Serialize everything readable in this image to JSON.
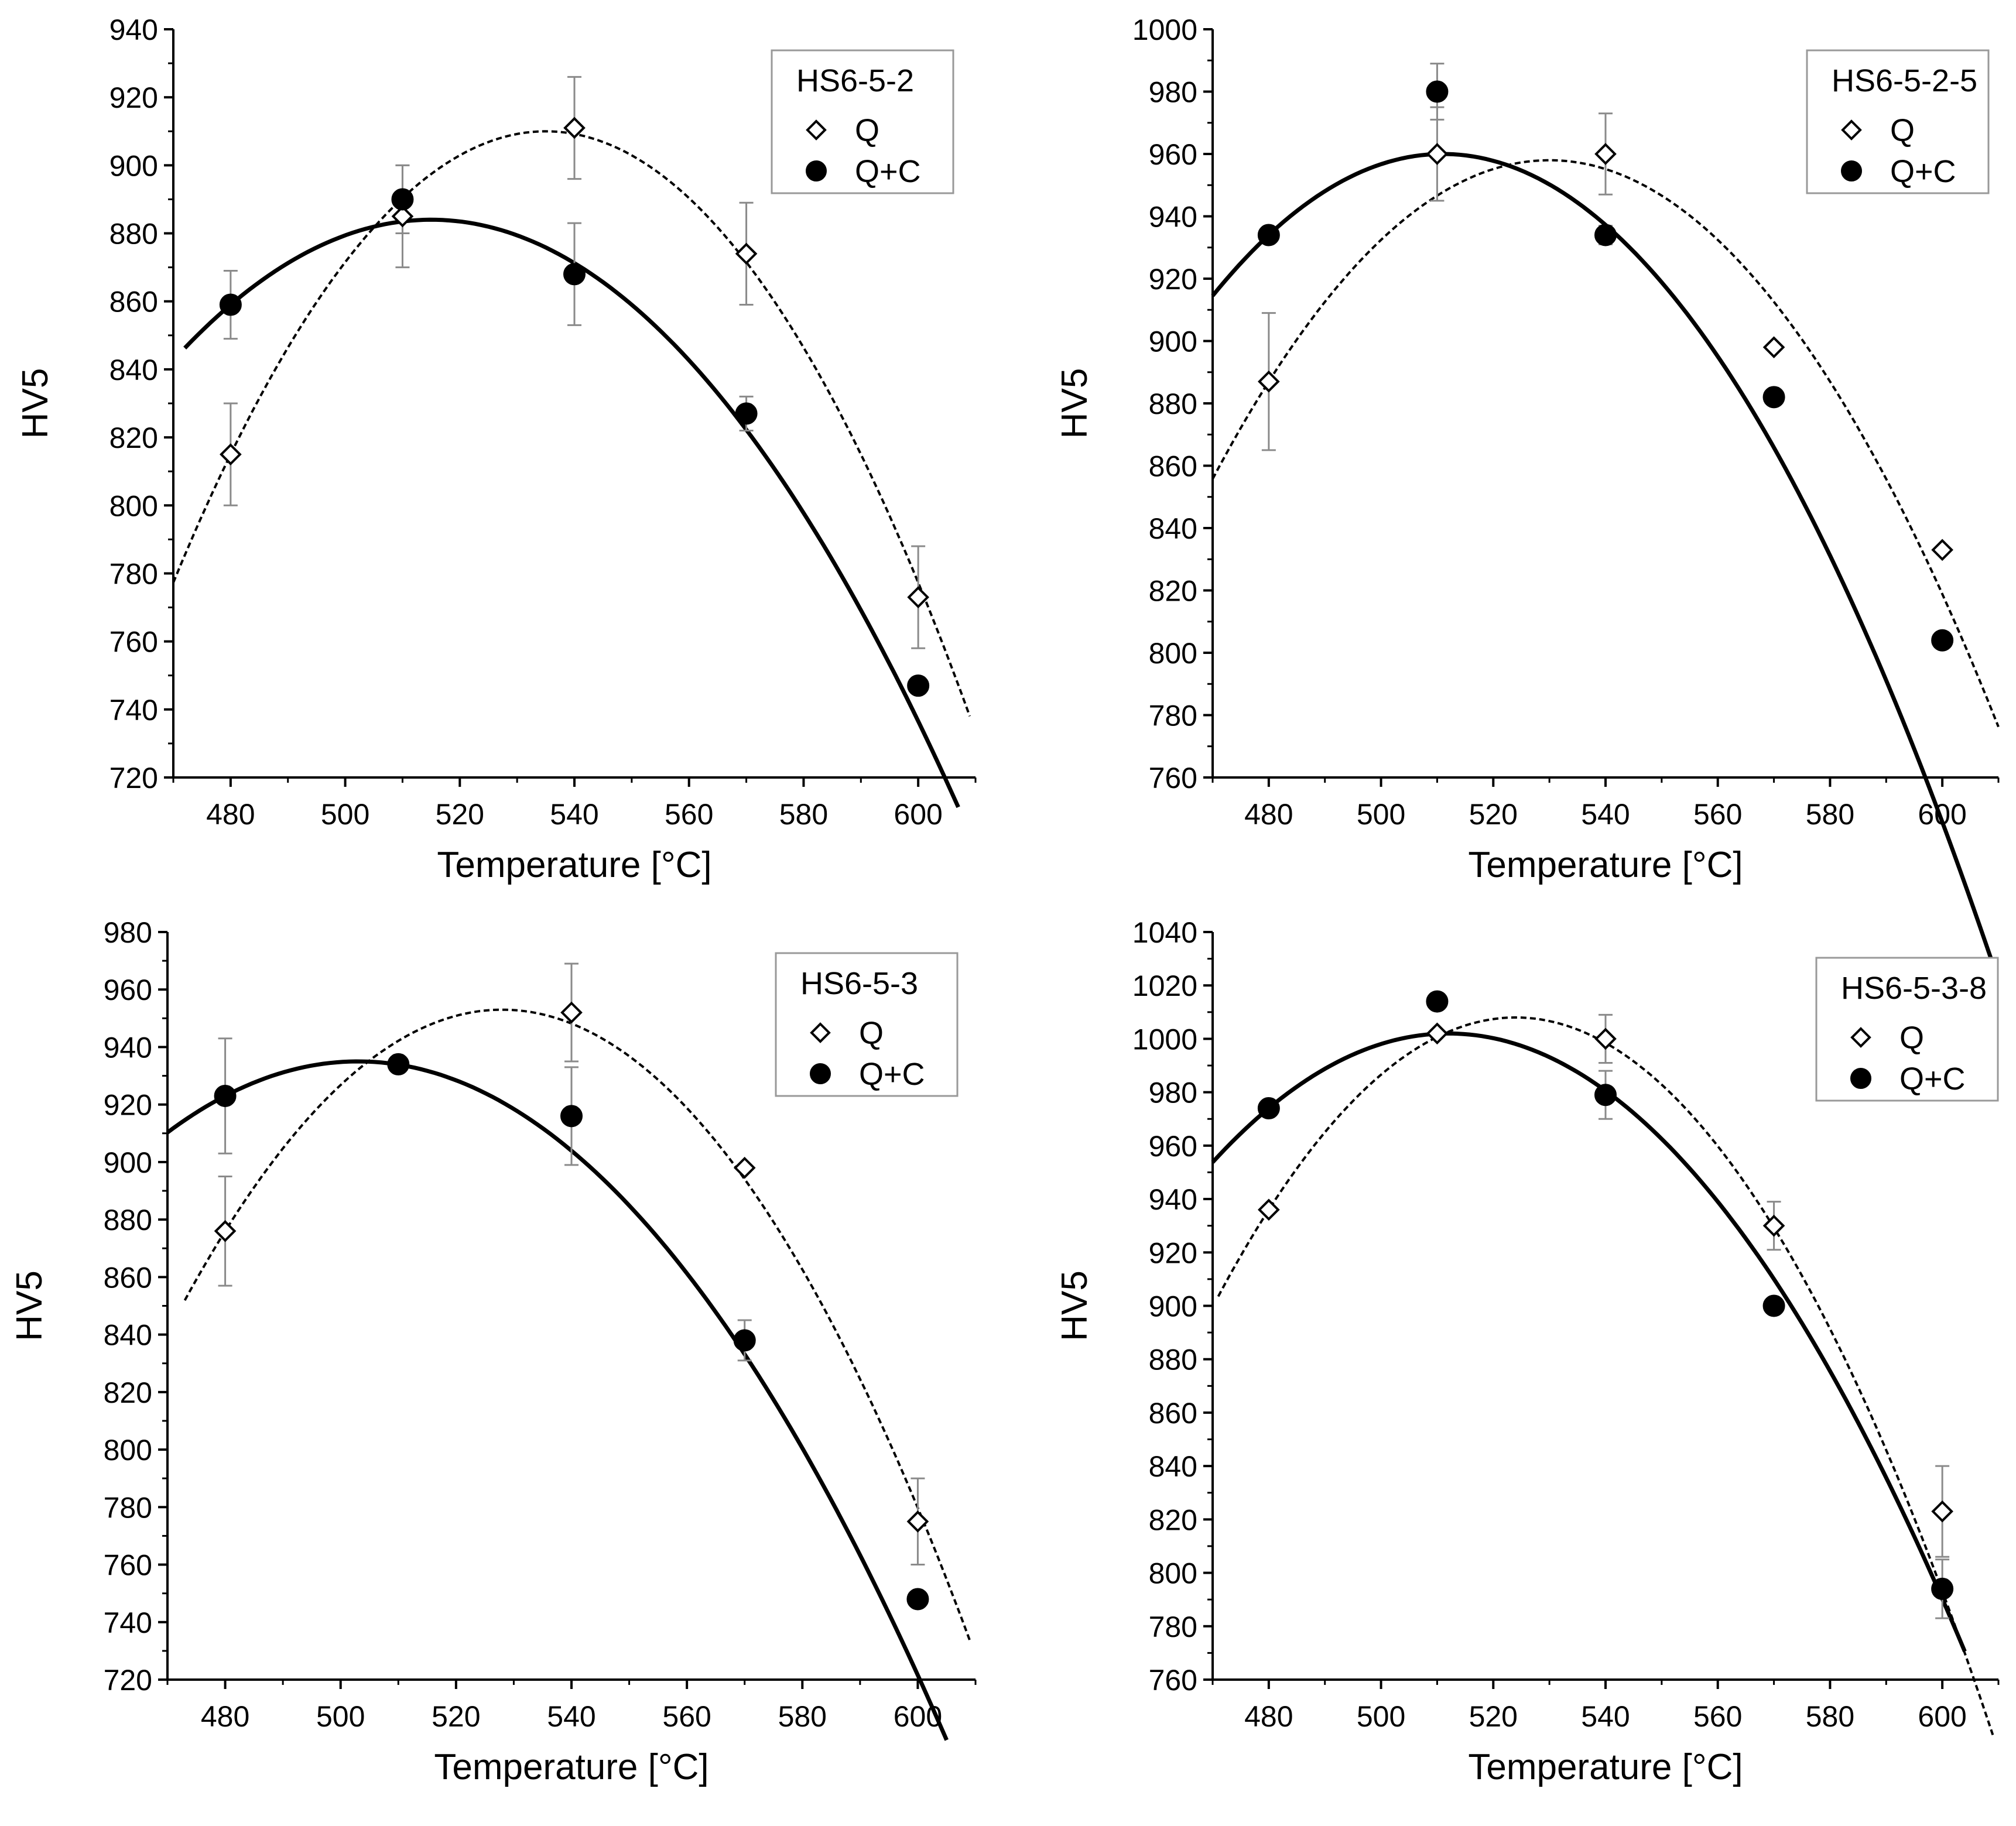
{
  "chart_data": [
    {
      "type": "scatter",
      "title": "",
      "legend_title": "HS6-5-2",
      "legend_position": "top-right",
      "xlabel": "Temperature  [°C]",
      "ylabel": "HV5",
      "xlim": [
        470,
        610
      ],
      "ylim": [
        720,
        940
      ],
      "xticks": [
        480,
        500,
        520,
        540,
        560,
        580,
        600
      ],
      "yticks": [
        720,
        740,
        760,
        780,
        800,
        820,
        840,
        860,
        880,
        900,
        920,
        940
      ],
      "series": [
        {
          "name": "Q",
          "marker": "open-diamond",
          "x": [
            480,
            510,
            540,
            570,
            600
          ],
          "values": [
            815,
            885,
            911,
            874,
            773
          ],
          "errors": [
            15,
            15,
            15,
            15,
            15
          ],
          "fit": {
            "style": "dashed",
            "vertex_x": 535,
            "vertex_y": 910,
            "x_from": 470,
            "x_to": 609
          }
        },
        {
          "name": "Q+C",
          "marker": "filled-circle",
          "x": [
            480,
            510,
            540,
            570,
            600
          ],
          "values": [
            859,
            890,
            868,
            827,
            747
          ],
          "errors": [
            10,
            10,
            15,
            5,
            0
          ],
          "fit": {
            "style": "solid",
            "vertex_x": 515,
            "vertex_y": 884,
            "x_from": 472,
            "x_to": 607
          }
        }
      ]
    },
    {
      "type": "scatter",
      "title": "",
      "legend_title": "HS6-5-2-5",
      "legend_position": "top-right",
      "xlabel": "Temperature  [°C]",
      "ylabel": "HV5",
      "xlim": [
        470,
        610
      ],
      "ylim": [
        760,
        1000
      ],
      "xticks": [
        480,
        500,
        520,
        540,
        560,
        580,
        600
      ],
      "yticks": [
        760,
        780,
        800,
        820,
        840,
        860,
        880,
        900,
        920,
        940,
        960,
        980,
        1000
      ],
      "series": [
        {
          "name": "Q",
          "marker": "open-diamond",
          "x": [
            480,
            510,
            540,
            570,
            600
          ],
          "values": [
            887,
            960,
            960,
            898,
            833
          ],
          "errors": [
            22,
            15,
            13,
            0,
            0
          ],
          "fit": {
            "style": "dashed",
            "vertex_x": 530,
            "vertex_y": 958,
            "x_from": 470,
            "x_to": 610
          }
        },
        {
          "name": "Q+C",
          "marker": "filled-circle",
          "x": [
            480,
            510,
            540,
            570,
            600
          ],
          "values": [
            934,
            980,
            934,
            882,
            804
          ],
          "errors": [
            0,
            9,
            3,
            0,
            0
          ],
          "fit": {
            "style": "solid",
            "vertex_x": 511,
            "vertex_y": 960,
            "x_from": 470,
            "x_to": 609
          }
        }
      ]
    },
    {
      "type": "scatter",
      "title": "",
      "legend_title": "HS6-5-3",
      "legend_position": "top-right",
      "xlabel": "Temperature  [°C]",
      "ylabel": "HV5",
      "xlim": [
        470,
        610
      ],
      "ylim": [
        720,
        980
      ],
      "xticks": [
        480,
        500,
        520,
        540,
        560,
        580,
        600
      ],
      "yticks": [
        720,
        740,
        760,
        780,
        800,
        820,
        840,
        860,
        880,
        900,
        920,
        940,
        960,
        980
      ],
      "series": [
        {
          "name": "Q",
          "marker": "open-diamond",
          "x": [
            480,
            510,
            540,
            570,
            600
          ],
          "values": [
            876,
            934,
            952,
            898,
            775
          ],
          "errors": [
            19,
            0,
            17,
            0,
            15
          ],
          "fit": {
            "style": "dashed",
            "vertex_x": 528,
            "vertex_y": 953,
            "x_from": 473,
            "x_to": 609
          }
        },
        {
          "name": "Q+C",
          "marker": "filled-circle",
          "x": [
            480,
            510,
            540,
            570,
            600
          ],
          "values": [
            923,
            934,
            916,
            838,
            748
          ],
          "errors": [
            20,
            0,
            17,
            7,
            0
          ],
          "fit": {
            "style": "solid",
            "vertex_x": 503,
            "vertex_y": 935,
            "x_from": 470,
            "x_to": 605
          }
        }
      ]
    },
    {
      "type": "scatter",
      "title": "",
      "legend_title": "HS6-5-3-8",
      "legend_position": "top-right",
      "xlabel": "Temperature  [°C]",
      "ylabel": "HV5",
      "xlim": [
        470,
        610
      ],
      "ylim": [
        760,
        1040
      ],
      "xticks": [
        480,
        500,
        520,
        540,
        560,
        580,
        600
      ],
      "yticks": [
        760,
        780,
        800,
        820,
        840,
        860,
        880,
        900,
        920,
        940,
        960,
        980,
        1000,
        1020,
        1040
      ],
      "series": [
        {
          "name": "Q",
          "marker": "open-diamond",
          "x": [
            480,
            510,
            540,
            570,
            600
          ],
          "values": [
            936,
            1002,
            1000,
            930,
            823
          ],
          "errors": [
            0,
            0,
            9,
            9,
            17
          ],
          "fit": {
            "style": "dashed",
            "vertex_x": 524,
            "vertex_y": 1008,
            "x_from": 471,
            "x_to": 609
          }
        },
        {
          "name": "Q+C",
          "marker": "filled-circle",
          "x": [
            480,
            510,
            540,
            570,
            600
          ],
          "values": [
            974,
            1014,
            979,
            900,
            794
          ],
          "errors": [
            0,
            0,
            9,
            0,
            11
          ],
          "fit": {
            "style": "solid",
            "vertex_x": 512,
            "vertex_y": 1002,
            "x_from": 470,
            "x_to": 604
          }
        }
      ]
    }
  ]
}
